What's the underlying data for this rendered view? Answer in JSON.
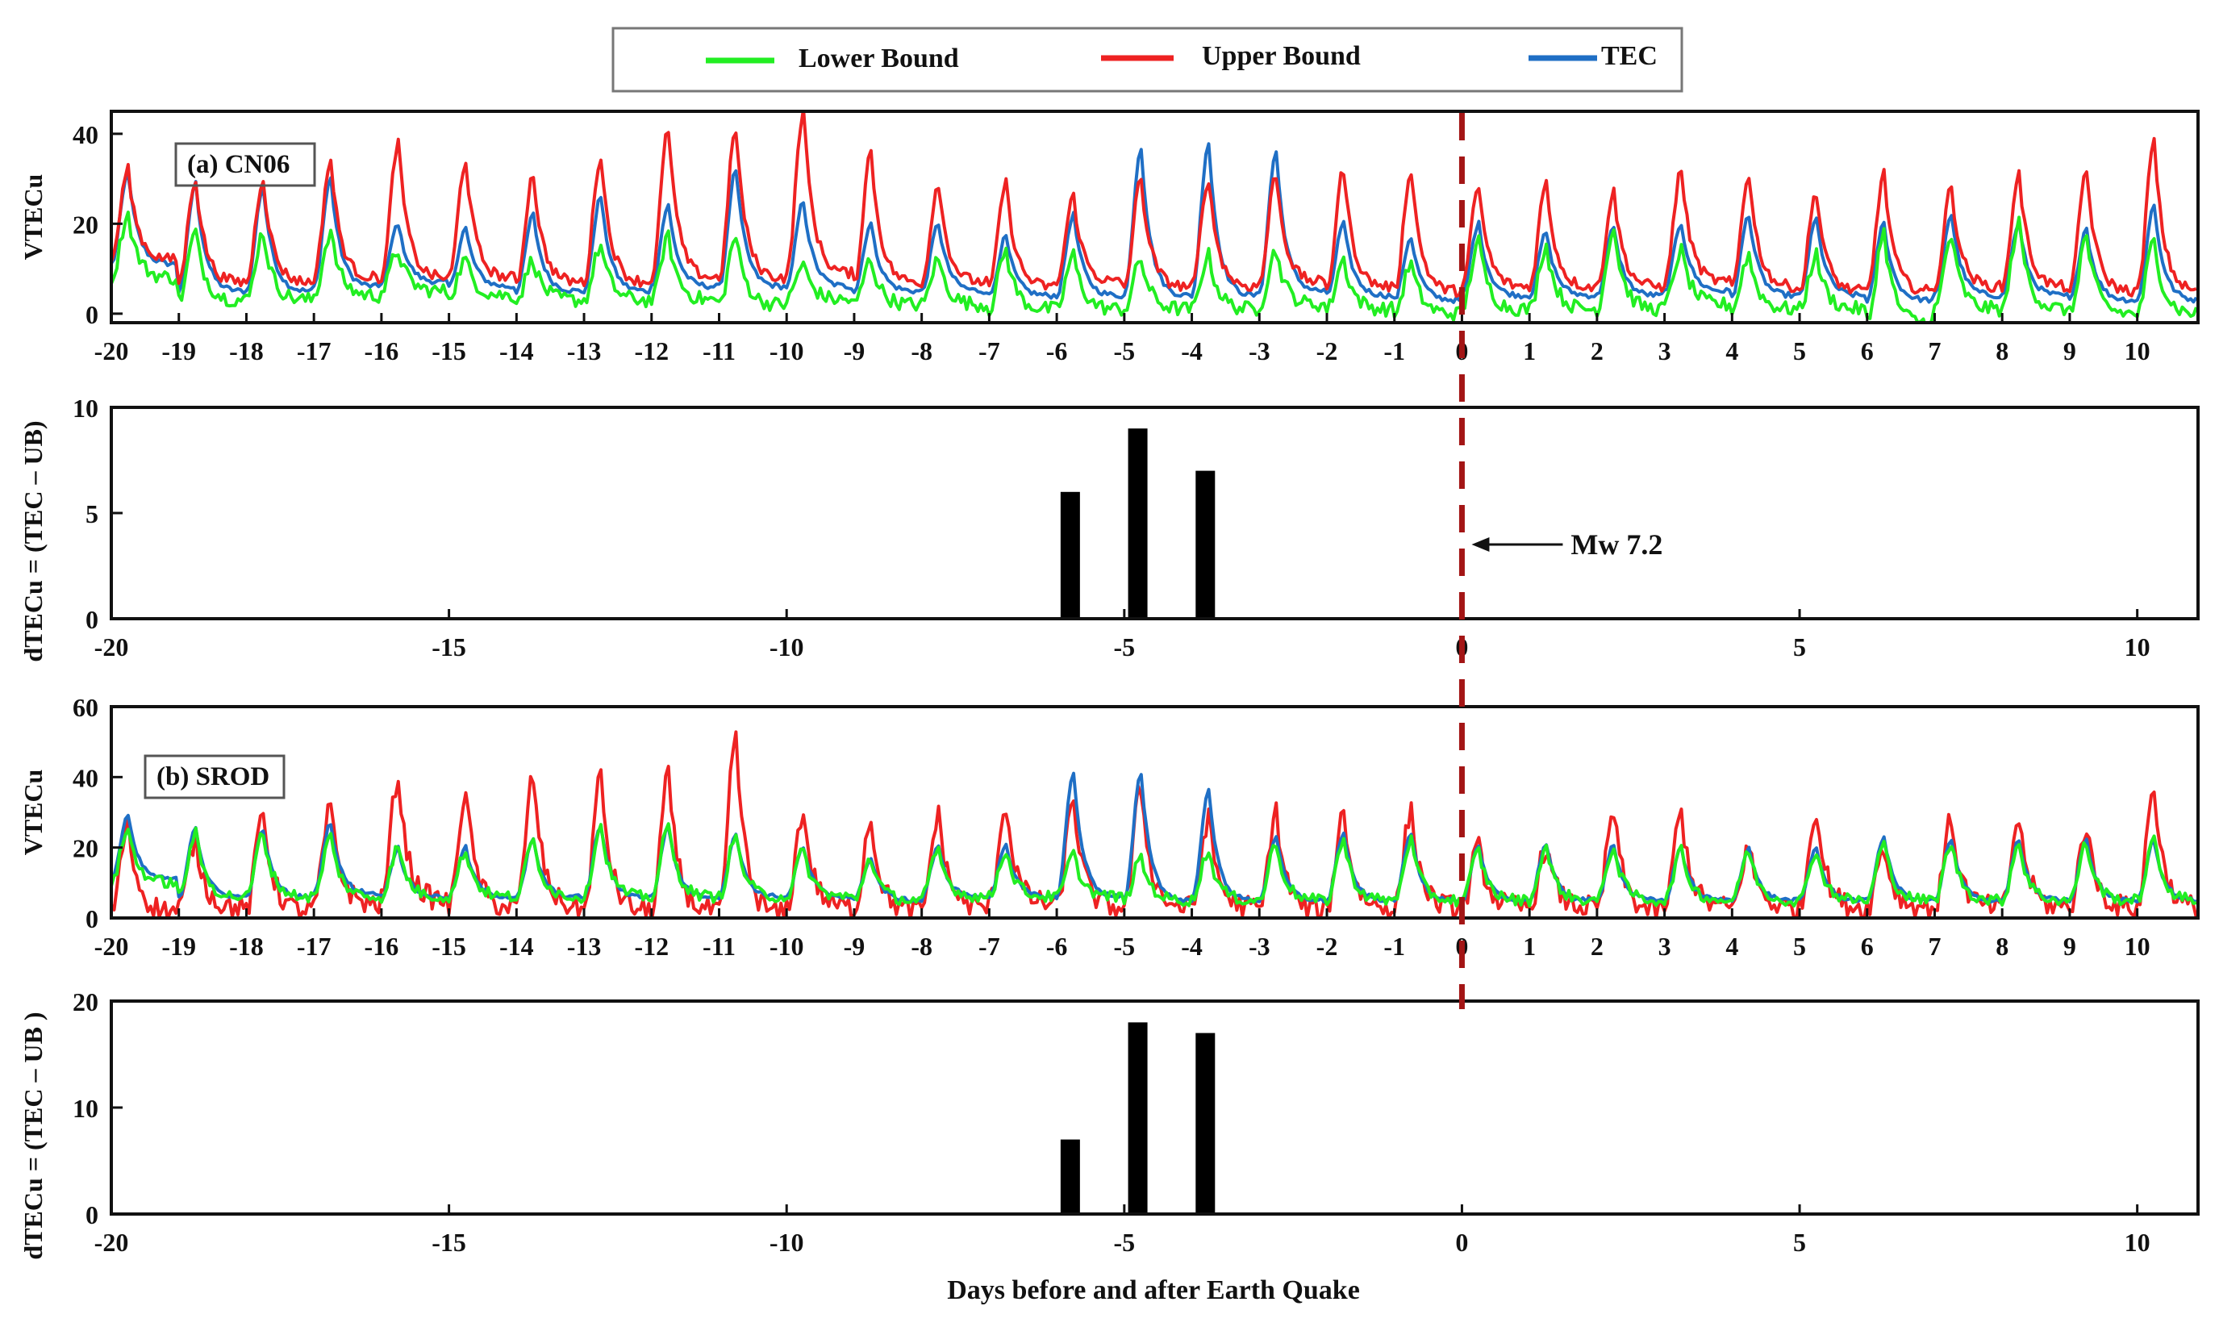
{
  "chart_data": {
    "type": "line",
    "colors": {
      "lower_bound": "#22ee22",
      "upper_bound": "#ee2222",
      "tec": "#1f6fc5",
      "bar": "#000000",
      "event_line": "#a31515"
    },
    "legend": {
      "position": "top-center",
      "entries": [
        "Lower Bound",
        "Upper Bound",
        "TEC"
      ]
    },
    "xlabel": "Days before and after Earth Quake",
    "xlim": [
      -20,
      10.9
    ],
    "event_day": 0,
    "annotation": "Mw 7.2",
    "panels": [
      {
        "kind": "series",
        "label": "(a) CN06",
        "ylabel": "VTECu",
        "ylim": [
          -2,
          45
        ],
        "yticks": [
          "0",
          "20",
          "40"
        ],
        "xticks": [
          "-20",
          "-19",
          "-18",
          "-17",
          "-16",
          "-15",
          "-14",
          "-13",
          "-12",
          "-11",
          "-10",
          "-9",
          "-8",
          "-7",
          "-6",
          "-5",
          "-4",
          "-3",
          "-2",
          "-1",
          "0",
          "1",
          "2",
          "3",
          "4",
          "5",
          "6",
          "7",
          "8",
          "9",
          "10"
        ],
        "daily": {
          "tec_peak": [
            31,
            29,
            28,
            30,
            20,
            19,
            22,
            26,
            24,
            32,
            25,
            20,
            20,
            17,
            22,
            37,
            38,
            36,
            20,
            17,
            20,
            18,
            19,
            20,
            22,
            21,
            20,
            22,
            20,
            19,
            24
          ],
          "upper_peak": [
            32,
            30,
            30,
            34,
            38,
            34,
            31,
            35,
            41,
            41,
            45,
            36,
            29,
            29,
            26,
            30,
            30,
            31,
            32,
            32,
            28,
            29,
            27,
            32,
            31,
            27,
            31,
            28,
            31,
            32,
            38
          ],
          "lower_peak": [
            22,
            18,
            18,
            18,
            14,
            12,
            12,
            15,
            17,
            17,
            11,
            12,
            12,
            14,
            13,
            12,
            13,
            14,
            12,
            11,
            16,
            15,
            19,
            14,
            13,
            13,
            18,
            17,
            20,
            17,
            16
          ],
          "tec_base": [
            11,
            5,
            5,
            6,
            7,
            6,
            5,
            5,
            6,
            6,
            6,
            5,
            5,
            4,
            4,
            4,
            4,
            5,
            4,
            3,
            4,
            4,
            4,
            5,
            4,
            4,
            3,
            4,
            4,
            3,
            3
          ],
          "upper_base": [
            12,
            7,
            7,
            8,
            8,
            8,
            7,
            7,
            8,
            8,
            9,
            7,
            7,
            6,
            7,
            6,
            6,
            7,
            6,
            5,
            6,
            6,
            6,
            7,
            6,
            5,
            5,
            6,
            6,
            5,
            5
          ],
          "lower_base": [
            8,
            3,
            3,
            4,
            5,
            4,
            3,
            3,
            3,
            2,
            3,
            2,
            2,
            1,
            1,
            1,
            1,
            2,
            1,
            0,
            1,
            1,
            1,
            2,
            1,
            1,
            -2,
            1,
            1,
            0,
            0
          ]
        }
      },
      {
        "kind": "bars",
        "ylabel": "dTECu = (TEC – UB)",
        "ylim": [
          0,
          10
        ],
        "yticks": [
          "0",
          "5",
          "10"
        ],
        "xticks": [
          "-20",
          "-15",
          "-10",
          "-5",
          "0",
          "5",
          "10"
        ],
        "bars": [
          {
            "x": -5.8,
            "value": 6
          },
          {
            "x": -4.8,
            "value": 9
          },
          {
            "x": -3.8,
            "value": 7
          }
        ]
      },
      {
        "kind": "series",
        "label": "(b) SROD",
        "ylabel": "VTECu",
        "ylim": [
          0,
          60
        ],
        "yticks": [
          "0",
          "20",
          "40",
          "60"
        ],
        "xticks": [
          "-20",
          "-19",
          "-18",
          "-17",
          "-16",
          "-15",
          "-14",
          "-13",
          "-12",
          "-11",
          "-10",
          "-9",
          "-8",
          "-7",
          "-6",
          "-5",
          "-4",
          "-3",
          "-2",
          "-1",
          "0",
          "1",
          "2",
          "3",
          "4",
          "5",
          "6",
          "7",
          "8",
          "9",
          "10"
        ],
        "daily": {
          "tec_peak": [
            29,
            26,
            25,
            27,
            20,
            20,
            22,
            26,
            26,
            24,
            20,
            17,
            20,
            21,
            41,
            41,
            36,
            23,
            24,
            24,
            20,
            21,
            21,
            20,
            20,
            20,
            23,
            22,
            22,
            22,
            22
          ],
          "upper_peak": [
            26,
            22,
            30,
            31,
            40,
            36,
            40,
            40,
            40,
            51,
            30,
            28,
            29,
            32,
            34,
            37,
            28,
            30,
            30,
            30,
            20,
            20,
            30,
            30,
            20,
            31,
            20,
            28,
            28,
            26,
            37
          ],
          "lower_peak": [
            25,
            24,
            24,
            23,
            20,
            19,
            22,
            26,
            26,
            23,
            19,
            17,
            19,
            19,
            18,
            17,
            19,
            21,
            22,
            22,
            19,
            20,
            20,
            19,
            19,
            19,
            21,
            21,
            21,
            21,
            22
          ],
          "tec_base": [
            11,
            6,
            6,
            7,
            6,
            6,
            6,
            6,
            6,
            6,
            6,
            5,
            6,
            6,
            6,
            5,
            5,
            5,
            5,
            5,
            5,
            5,
            5,
            5,
            5,
            5,
            5,
            5,
            5,
            5,
            5
          ],
          "upper_base": [
            2,
            3,
            2,
            4,
            5,
            3,
            3,
            2,
            2,
            1,
            3,
            2,
            3,
            4,
            3,
            3,
            3,
            2,
            3,
            3,
            3,
            3,
            2,
            3,
            3,
            3,
            3,
            3,
            3,
            3,
            3
          ],
          "lower_base": [
            10,
            6,
            6,
            6,
            6,
            6,
            6,
            6,
            6,
            6,
            6,
            5,
            6,
            6,
            6,
            5,
            5,
            5,
            5,
            5,
            5,
            5,
            5,
            5,
            5,
            5,
            5,
            5,
            5,
            5,
            5
          ]
        }
      },
      {
        "kind": "bars",
        "ylabel": "dTECu = (TEC – UB )",
        "ylim": [
          0,
          20
        ],
        "yticks": [
          "0",
          "10",
          "20"
        ],
        "xticks": [
          "-20",
          "-15",
          "-10",
          "-5",
          "0",
          "5",
          "10"
        ],
        "bars": [
          {
            "x": -5.8,
            "value": 7
          },
          {
            "x": -4.8,
            "value": 18
          },
          {
            "x": -3.8,
            "value": 17
          }
        ]
      }
    ]
  }
}
